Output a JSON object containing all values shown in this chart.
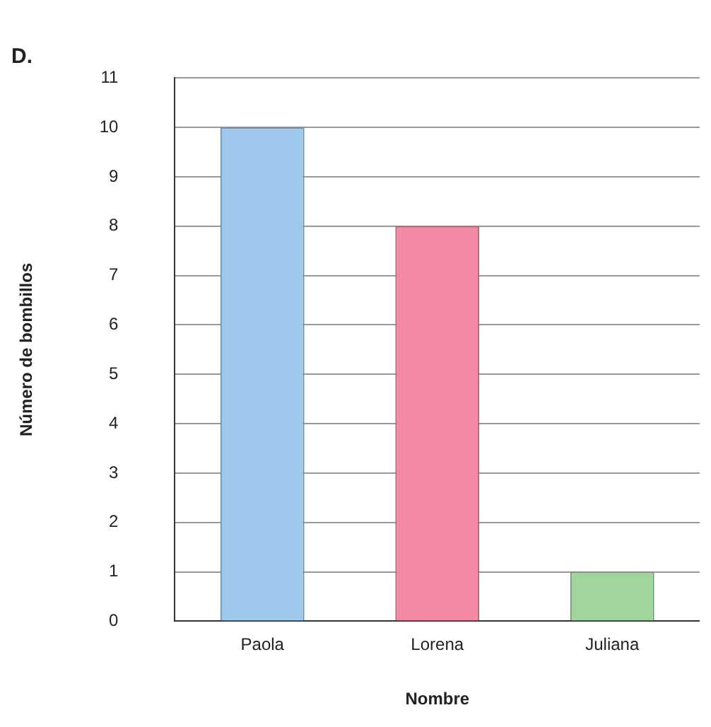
{
  "chart_data": {
    "type": "bar",
    "title": "D.",
    "xlabel": "Nombre",
    "ylabel": "Número de bombillos",
    "categories": [
      "Paola",
      "Lorena",
      "Juliana"
    ],
    "values": [
      10,
      8,
      1
    ],
    "colors": [
      "#9ec9ec",
      "#f28aa4",
      "#a0d69c"
    ],
    "ylim": [
      0,
      11
    ],
    "yticks": [
      0,
      1,
      2,
      3,
      4,
      5,
      6,
      7,
      8,
      9,
      10,
      11
    ],
    "grid": "y",
    "legend": false
  }
}
